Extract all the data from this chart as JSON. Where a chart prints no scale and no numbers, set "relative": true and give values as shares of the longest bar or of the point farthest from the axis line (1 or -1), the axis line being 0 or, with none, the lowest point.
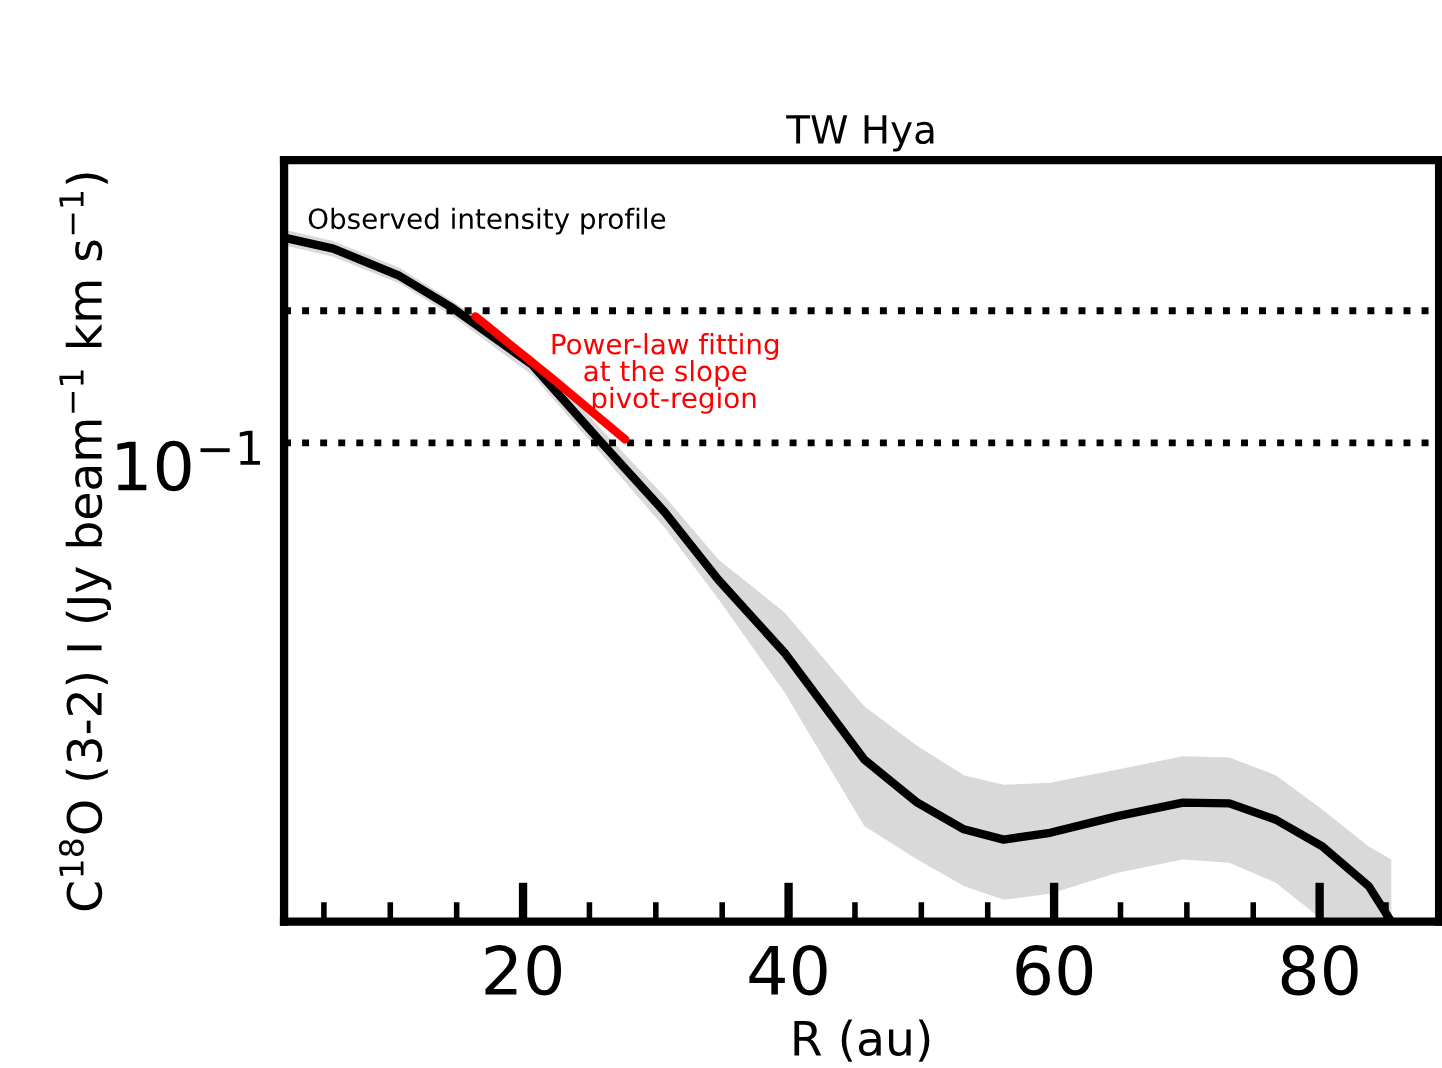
{
  "chart_data": {
    "type": "line",
    "title": "TW Hya",
    "xlabel": "R (au)",
    "ylabel": "C$^{18}$O (3-2) I (Jy beam$^{−1}$ km s$^{−1}$)",
    "relative": true,
    "grid": false,
    "marker": "none",
    "line_style": "solid",
    "xlim": [
      2,
      89
    ],
    "xticks": [
      {
        "value": 5,
        "label": null
      },
      {
        "value": 10,
        "label": null
      },
      {
        "value": 15,
        "label": null
      },
      20,
      {
        "value": 25,
        "label": null
      },
      {
        "value": 30,
        "label": null
      },
      {
        "value": 35,
        "label": null
      },
      40,
      {
        "value": 45,
        "label": null
      },
      {
        "value": 50,
        "label": null
      },
      {
        "value": 55,
        "label": null
      },
      60,
      {
        "value": 65,
        "label": null
      },
      {
        "value": 70,
        "label": null
      },
      {
        "value": 75,
        "label": null
      },
      80,
      {
        "value": 85,
        "label": null
      }
    ],
    "series": [
      {
        "color": "#000000",
        "x": [
          2,
          5.7,
          10.7,
          14.7,
          20.7,
          25.7,
          30.7,
          34.7,
          39.7,
          45.7,
          49.7,
          53.2,
          56.2,
          59.7,
          64.7,
          69.7,
          73.2,
          76.7,
          80.2,
          83.7,
          85.4
        ],
        "values": [
          1.0,
          0.984,
          0.944,
          0.897,
          0.814,
          0.705,
          0.598,
          0.5,
          0.393,
          0.237,
          0.174,
          0.135,
          0.12,
          0.13,
          0.154,
          0.174,
          0.173,
          0.149,
          0.11,
          0.052,
          0
        ],
        "upper": [
          1.012,
          0.995,
          0.956,
          0.907,
          0.827,
          0.724,
          0.621,
          0.53,
          0.452,
          0.315,
          0.257,
          0.214,
          0.2,
          0.203,
          0.222,
          0.242,
          0.24,
          0.214,
          0.164,
          0.11,
          0.091
        ],
        "lower": [
          0.989,
          0.972,
          0.933,
          0.885,
          0.799,
          0.688,
          0.575,
          0.472,
          0.335,
          0.14,
          0.091,
          0.052,
          0.032,
          0.041,
          0.071,
          0.091,
          0.086,
          0.057,
          0.003,
          0,
          0
        ]
      },
      {
        "color": "#ff0000",
        "x": [
          16.4,
          22.2,
          27.7
        ],
        "values": [
          0.885,
          0.794,
          0.705
        ]
      }
    ],
    "ref_lines": [
      {
        "axis": "y",
        "value": 0.893,
        "color": "#000000",
        "line_style": "dotted"
      },
      {
        "axis": "y",
        "value": 0.7,
        "color": "#000000",
        "line_style": "dotted"
      }
    ],
    "annotations": [
      "Observed intensity profile",
      "Power-law fitting\nat the slope\n  pivot-region",
      "10$^{−1}$"
    ]
  }
}
